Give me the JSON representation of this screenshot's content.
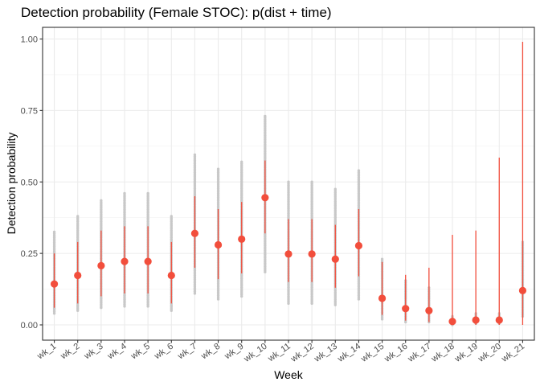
{
  "chart_data": {
    "type": "scatter",
    "title": "Detection probability (Female STOC): p(dist + time)",
    "xlabel": "Week",
    "ylabel": "Detection probability",
    "ylim": [
      0,
      1.05
    ],
    "yticks": [
      0.0,
      0.25,
      0.5,
      0.75,
      1.0
    ],
    "ytick_labels": [
      "0.00",
      "0.25",
      "0.50",
      "0.75",
      "1.00"
    ],
    "grid": true,
    "categories": [
      "wk_1",
      "wk_2",
      "wk_3",
      "wk_4",
      "wk_5",
      "wk_6",
      "wk_7",
      "wk_8",
      "wk_9",
      "wk_10",
      "wk_11",
      "wk_12",
      "wk_13",
      "wk_14",
      "wk_15",
      "wk_16",
      "wk_17",
      "wk_18",
      "wk_19",
      "wk_20",
      "wk_21"
    ],
    "series": [
      {
        "role": "site-level estimates",
        "color": "#c8c8c8",
        "min": [
          0.04,
          0.05,
          0.06,
          0.065,
          0.065,
          0.05,
          0.11,
          0.09,
          0.1,
          0.185,
          0.075,
          0.075,
          0.07,
          0.09,
          0.02,
          0.01,
          0.01,
          0.0,
          0.005,
          0.005,
          0.03
        ],
        "max": [
          0.325,
          0.38,
          0.435,
          0.46,
          0.46,
          0.38,
          0.595,
          0.545,
          0.57,
          0.73,
          0.5,
          0.5,
          0.475,
          0.54,
          0.23,
          0.155,
          0.13,
          0.03,
          0.04,
          0.04,
          0.29
        ]
      },
      {
        "role": "mean estimate with 95% interval",
        "color": "#f24e3c",
        "values": [
          0.143,
          0.173,
          0.207,
          0.222,
          0.222,
          0.173,
          0.32,
          0.28,
          0.3,
          0.445,
          0.248,
          0.248,
          0.23,
          0.277,
          0.093,
          0.057,
          0.05,
          0.012,
          0.017,
          0.017,
          0.12
        ],
        "lower": [
          0.06,
          0.075,
          0.1,
          0.11,
          0.11,
          0.075,
          0.2,
          0.16,
          0.18,
          0.32,
          0.15,
          0.15,
          0.13,
          0.17,
          0.035,
          0.015,
          0.01,
          0.0,
          0.0,
          0.0,
          0.0
        ],
        "upper": [
          0.25,
          0.29,
          0.33,
          0.345,
          0.345,
          0.29,
          0.45,
          0.405,
          0.43,
          0.575,
          0.37,
          0.37,
          0.35,
          0.405,
          0.22,
          0.175,
          0.2,
          0.315,
          0.33,
          0.585,
          0.99
        ]
      }
    ]
  }
}
